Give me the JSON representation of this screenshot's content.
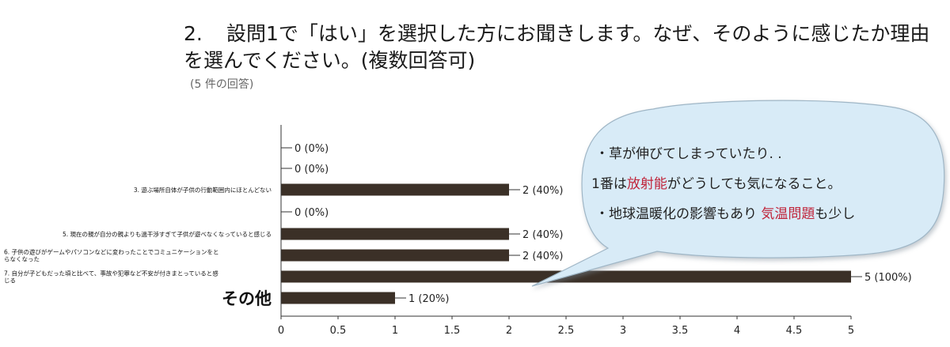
{
  "question": {
    "number": "2.",
    "text": "設問1で「はい」を選択した方にお聞きします。なぜ、そのように感じたか理由を選んでください。(複数回答可)",
    "responses": "(5 件の回答)"
  },
  "chart_data": {
    "type": "bar",
    "orientation": "horizontal",
    "categories": [
      "",
      "",
      "3. 遊ぶ場所自体が子供の行動範囲内にほとんどない",
      "",
      "5. 現在の親が自分の親よりも過干渉すぎて子供が遊べなくなっていると感じる",
      "6. 子供の遊びがゲームやパソコンなどに変わったことでコミュニケーションをとらなくなった",
      "7. 自分が子どもだった頃と比べて、事故や犯罪など不安が付きまとっていると感じる",
      "その他"
    ],
    "values": [
      0,
      0,
      2,
      0,
      2,
      2,
      5,
      1
    ],
    "value_labels": [
      "0 (0%)",
      "0 (0%)",
      "2 (40%)",
      "0 (0%)",
      "2 (40%)",
      "2 (40%)",
      "5 (100%)",
      "1 (20%)"
    ],
    "xlim": [
      0,
      5
    ],
    "ticks": [
      "0",
      "0.5",
      "1",
      "1.5",
      "2",
      "2.5",
      "3",
      "3.5",
      "4",
      "4.5",
      "5"
    ],
    "bar_color": "#3b3027",
    "grid": false
  },
  "callout": {
    "line1": "・草が伸びてしまっていたり. .",
    "line2_pre": "1番は",
    "line2_hl": "放射能",
    "line2_post": "がどうしても気になること。",
    "line3_pre": "・地球温暖化の影響もあり ",
    "line3_hl": "気温問題",
    "line3_post": "も少し",
    "highlight_color": "#c0243a",
    "fill_color": "#d8ebf7"
  }
}
